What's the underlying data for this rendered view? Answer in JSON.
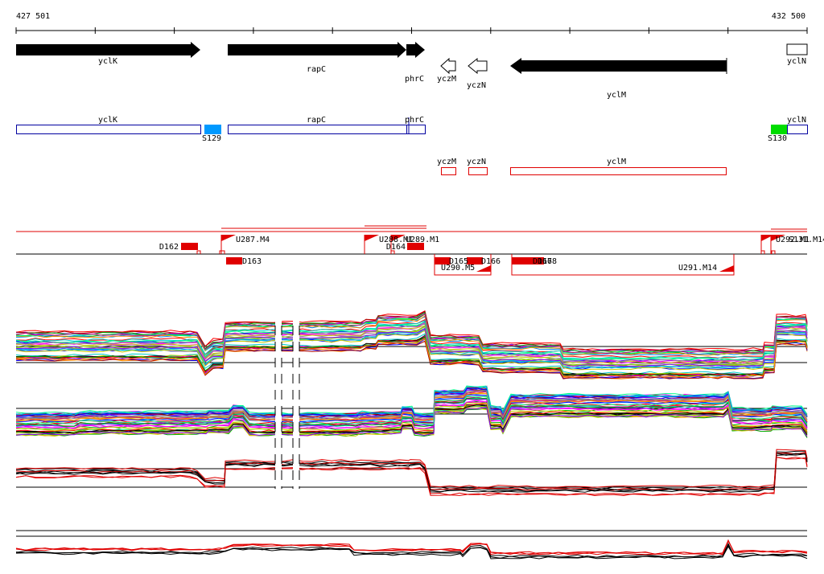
{
  "axis": {
    "start": "427 501",
    "end": "432 500"
  },
  "genes": [
    "yclK",
    "rapC",
    "phrC",
    "yczM",
    "yczN",
    "yclM",
    "yclN"
  ],
  "segments": [
    "yclK",
    "S129",
    "rapC",
    "phrC",
    "yclN",
    "S130"
  ],
  "transcripts": [
    "yczM",
    "yczN",
    "yclM"
  ],
  "probes": [
    "D162",
    "U287.M4",
    "U288.M1",
    "U289.M1",
    "D164",
    "D163",
    "D165",
    "D166",
    "D167",
    "D168",
    "U290.M5",
    "U291.M14",
    "U292.M1",
    "S131.M14"
  ]
}
